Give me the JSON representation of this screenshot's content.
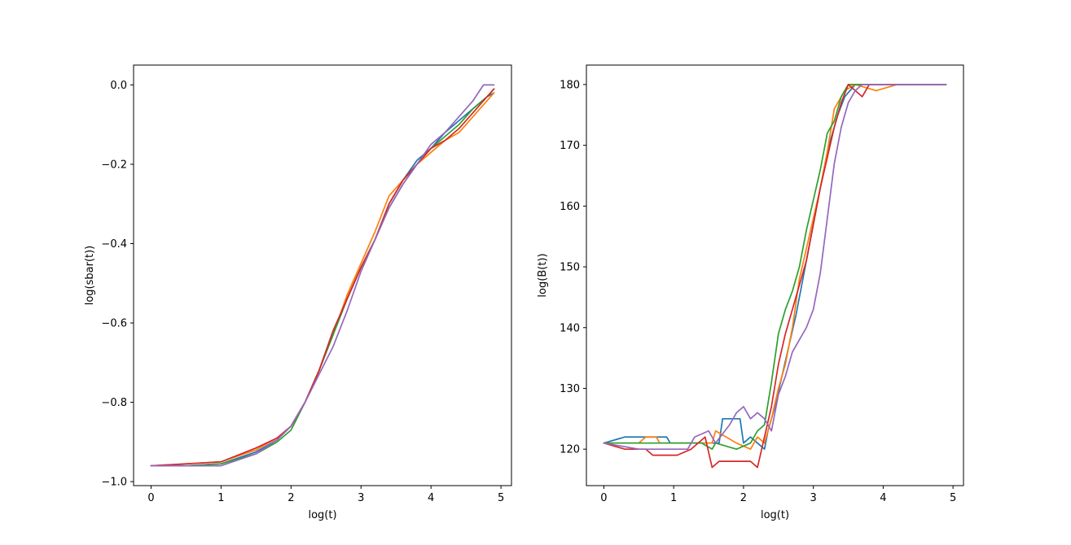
{
  "chart_data": [
    {
      "type": "line",
      "xlabel": "log(t)",
      "ylabel": "log(sbar(t))",
      "xlim": [
        -0.25,
        5.15
      ],
      "ylim": [
        -1.01,
        0.05
      ],
      "xticks": [
        0,
        1,
        2,
        3,
        4,
        5
      ],
      "xtick_labels": [
        "0",
        "1",
        "2",
        "3",
        "4",
        "5"
      ],
      "yticks": [
        -1.0,
        -0.8,
        -0.6,
        -0.4,
        -0.2,
        0.0
      ],
      "ytick_labels": [
        "−1.0",
        "−0.8",
        "−0.6",
        "−0.4",
        "−0.2",
        "0.0"
      ],
      "grid": false,
      "series": [
        {
          "color": "#1f77b4",
          "x": [
            0,
            0.5,
            1.0,
            1.5,
            1.8,
            2.0,
            2.2,
            2.4,
            2.6,
            2.8,
            3.0,
            3.2,
            3.4,
            3.6,
            3.8,
            4.0,
            4.2,
            4.4,
            4.6,
            4.8,
            4.9
          ],
          "y": [
            -0.96,
            -0.96,
            -0.955,
            -0.925,
            -0.895,
            -0.86,
            -0.8,
            -0.72,
            -0.63,
            -0.54,
            -0.46,
            -0.39,
            -0.3,
            -0.24,
            -0.19,
            -0.16,
            -0.12,
            -0.09,
            -0.06,
            -0.03,
            -0.02
          ]
        },
        {
          "color": "#ff7f0e",
          "x": [
            0,
            0.5,
            1.0,
            1.5,
            1.8,
            2.0,
            2.2,
            2.4,
            2.6,
            2.8,
            3.0,
            3.2,
            3.4,
            3.6,
            3.8,
            4.0,
            4.2,
            4.4,
            4.6,
            4.8,
            4.9
          ],
          "y": [
            -0.96,
            -0.955,
            -0.95,
            -0.92,
            -0.89,
            -0.86,
            -0.8,
            -0.72,
            -0.63,
            -0.53,
            -0.45,
            -0.37,
            -0.28,
            -0.24,
            -0.2,
            -0.17,
            -0.14,
            -0.12,
            -0.08,
            -0.04,
            -0.02
          ]
        },
        {
          "color": "#2ca02c",
          "x": [
            0,
            0.5,
            1.0,
            1.5,
            1.8,
            2.0,
            2.2,
            2.4,
            2.6,
            2.8,
            3.0,
            3.2,
            3.4,
            3.6,
            3.8,
            4.0,
            4.2,
            4.4,
            4.6,
            4.8,
            4.9
          ],
          "y": [
            -0.96,
            -0.96,
            -0.955,
            -0.93,
            -0.9,
            -0.87,
            -0.8,
            -0.72,
            -0.63,
            -0.54,
            -0.46,
            -0.39,
            -0.31,
            -0.25,
            -0.2,
            -0.16,
            -0.13,
            -0.1,
            -0.06,
            -0.03,
            -0.01
          ]
        },
        {
          "color": "#d62728",
          "x": [
            0,
            0.5,
            1.0,
            1.5,
            1.8,
            2.0,
            2.2,
            2.4,
            2.6,
            2.8,
            3.0,
            3.2,
            3.4,
            3.6,
            3.8,
            4.0,
            4.2,
            4.4,
            4.6,
            4.8,
            4.9
          ],
          "y": [
            -0.96,
            -0.955,
            -0.95,
            -0.915,
            -0.89,
            -0.86,
            -0.8,
            -0.72,
            -0.62,
            -0.54,
            -0.46,
            -0.39,
            -0.3,
            -0.24,
            -0.2,
            -0.16,
            -0.14,
            -0.11,
            -0.07,
            -0.03,
            -0.01
          ]
        },
        {
          "color": "#9467bd",
          "x": [
            0,
            0.5,
            1.0,
            1.5,
            1.8,
            2.0,
            2.2,
            2.4,
            2.6,
            2.8,
            3.0,
            3.2,
            3.4,
            3.6,
            3.8,
            4.0,
            4.2,
            4.4,
            4.6,
            4.75,
            4.9
          ],
          "y": [
            -0.96,
            -0.96,
            -0.96,
            -0.93,
            -0.895,
            -0.86,
            -0.8,
            -0.73,
            -0.66,
            -0.57,
            -0.47,
            -0.39,
            -0.31,
            -0.25,
            -0.2,
            -0.15,
            -0.12,
            -0.08,
            -0.04,
            0.0,
            0.0
          ]
        }
      ]
    },
    {
      "type": "line",
      "xlabel": "log(t)",
      "ylabel": "log(B(t))",
      "xlim": [
        -0.25,
        5.15
      ],
      "ylim": [
        114,
        183.2
      ],
      "xticks": [
        0,
        1,
        2,
        3,
        4,
        5
      ],
      "xtick_labels": [
        "0",
        "1",
        "2",
        "3",
        "4",
        "5"
      ],
      "yticks": [
        120,
        130,
        140,
        150,
        160,
        170,
        180
      ],
      "ytick_labels": [
        "120",
        "130",
        "140",
        "150",
        "160",
        "170",
        "180"
      ],
      "grid": false,
      "series": [
        {
          "color": "#1f77b4",
          "x": [
            0,
            0.3,
            0.9,
            0.95,
            1.65,
            1.7,
            1.95,
            2.0,
            2.1,
            2.2,
            2.3,
            2.35,
            2.45,
            2.55,
            2.65,
            2.75,
            2.85,
            2.95,
            3.05,
            3.15,
            3.25,
            3.35,
            3.45,
            3.6,
            3.8,
            4.0,
            4.5,
            4.9
          ],
          "y": [
            121,
            122,
            122,
            121,
            121,
            125,
            125,
            121,
            122,
            121,
            120,
            123,
            127,
            132,
            137,
            142,
            148,
            154,
            160,
            166,
            171,
            175,
            178,
            180,
            180,
            180,
            180,
            180
          ]
        },
        {
          "color": "#ff7f0e",
          "x": [
            0,
            0.5,
            0.6,
            0.75,
            0.8,
            1.55,
            1.6,
            1.9,
            2.1,
            2.2,
            2.3,
            2.4,
            2.5,
            2.6,
            2.7,
            2.8,
            2.9,
            3.0,
            3.1,
            3.2,
            3.3,
            3.45,
            3.6,
            3.9,
            4.2,
            4.9
          ],
          "y": [
            121,
            121,
            122,
            122,
            121,
            121,
            123,
            121,
            120,
            122,
            121,
            125,
            130,
            134,
            140,
            148,
            153,
            158,
            163,
            169,
            176,
            179,
            180,
            179,
            180,
            180
          ]
        },
        {
          "color": "#2ca02c",
          "x": [
            0,
            0.5,
            1.4,
            1.55,
            1.6,
            1.9,
            2.1,
            2.2,
            2.3,
            2.4,
            2.5,
            2.6,
            2.7,
            2.8,
            2.9,
            3.0,
            3.1,
            3.2,
            3.3,
            3.4,
            3.5,
            3.7,
            4.0,
            4.9
          ],
          "y": [
            121,
            121,
            121,
            120,
            121,
            120,
            121,
            123,
            124,
            131,
            139,
            143,
            146,
            150,
            156,
            161,
            166,
            172,
            174,
            178,
            180,
            180,
            180,
            180
          ]
        },
        {
          "color": "#d62728",
          "x": [
            0,
            0.3,
            0.6,
            0.7,
            1.05,
            1.25,
            1.45,
            1.55,
            1.65,
            2.1,
            2.2,
            2.3,
            2.4,
            2.5,
            2.6,
            2.7,
            2.8,
            2.9,
            3.0,
            3.1,
            3.2,
            3.3,
            3.4,
            3.5,
            3.7,
            3.8,
            4.0,
            4.9
          ],
          "y": [
            121,
            120,
            120,
            119,
            119,
            120,
            122,
            117,
            118,
            118,
            117,
            122,
            127,
            134,
            139,
            143,
            147,
            151,
            157,
            163,
            168,
            173,
            177,
            180,
            178,
            180,
            180,
            180
          ]
        },
        {
          "color": "#9467bd",
          "x": [
            0,
            0.5,
            1.2,
            1.3,
            1.5,
            1.6,
            1.8,
            1.9,
            2.0,
            2.1,
            2.2,
            2.3,
            2.4,
            2.5,
            2.6,
            2.7,
            2.8,
            2.9,
            3.0,
            3.1,
            3.2,
            3.3,
            3.4,
            3.5,
            3.6,
            3.7,
            4.0,
            4.9
          ],
          "y": [
            121,
            120,
            120,
            122,
            123,
            121,
            124,
            126,
            127,
            125,
            126,
            125,
            123,
            129,
            132,
            136,
            138,
            140,
            143,
            149,
            158,
            167,
            173,
            177,
            179,
            180,
            180,
            180
          ]
        }
      ]
    }
  ]
}
